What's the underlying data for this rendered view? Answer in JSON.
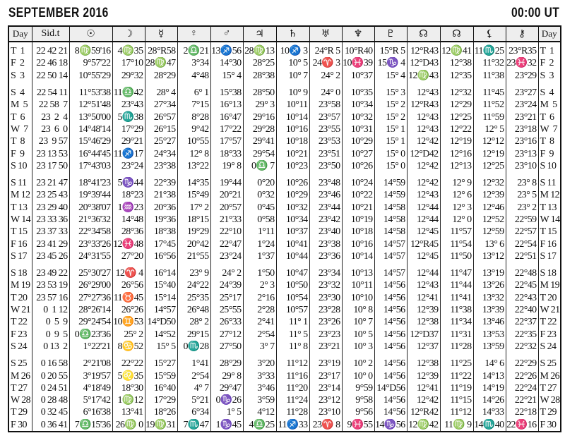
{
  "header": {
    "title": "SEPTEMBER 2016",
    "time": "00:00 UT"
  },
  "columns": [
    {
      "label": "Day",
      "icon": "day-label"
    },
    {
      "label": "Sid.t",
      "icon": "sidereal-time-label"
    },
    {
      "label": "☉",
      "icon": "sun-icon"
    },
    {
      "label": "☽",
      "icon": "moon-icon"
    },
    {
      "label": "☿",
      "icon": "mercury-icon"
    },
    {
      "label": "♀",
      "icon": "venus-icon"
    },
    {
      "label": "♂",
      "icon": "mars-icon"
    },
    {
      "label": "♃",
      "icon": "jupiter-icon"
    },
    {
      "label": "♄",
      "icon": "saturn-icon"
    },
    {
      "label": "♅",
      "icon": "uranus-icon"
    },
    {
      "label": "♆",
      "icon": "neptune-icon"
    },
    {
      "label": "♇",
      "icon": "pluto-icon"
    },
    {
      "label": "☊",
      "icon": "mean-node-icon"
    },
    {
      "label": "☊",
      "icon": "true-node-icon"
    },
    {
      "label": "⚸",
      "icon": "lilith-icon"
    },
    {
      "label": "⚷",
      "icon": "chiron-icon"
    },
    {
      "label": "Day",
      "icon": "day-label"
    }
  ],
  "rows": [
    [
      "T  1",
      "22 42 21",
      "8♍59'16",
      "4♍35",
      "28°R58",
      "2♎21",
      "13♐56",
      "28♍13",
      "10♐ 3",
      "24°R 5",
      "10°R40",
      "15°R 5",
      "12°R43",
      "12♍41",
      "11♏25",
      "23°R35",
      "T  1"
    ],
    [
      "F  2",
      "22 46 18",
      "9°57'22",
      "17°10",
      "28♍47",
      "3°34",
      "14°30",
      "28°25",
      "10° 5",
      "24♈ 3",
      "10♓39",
      "15♑ 4",
      "12°D43",
      "12°38",
      "11°32",
      "23♓32",
      "F  2"
    ],
    [
      "S  3",
      "22 50 14",
      "10°55'29",
      "29°32",
      "28°29",
      "4°48",
      "15° 4",
      "28°38",
      "10° 7",
      "24° 2",
      "10°37",
      "15° 4",
      "12♍43",
      "12°35",
      "11°38",
      "23°29",
      "S  3"
    ],
    [
      "S  4",
      "22 54 11",
      "11°53'38",
      "11♎42",
      "28° 4",
      "6° 1",
      "15°38",
      "28°50",
      "10° 9",
      "24° 0",
      "10°35",
      "15° 3",
      "12°43",
      "12°32",
      "11°45",
      "23°27",
      "S  4"
    ],
    [
      "M  5",
      "22 58  7",
      "12°51'48",
      "23°43",
      "27°34",
      "7°15",
      "16°13",
      "29° 3",
      "10°11",
      "23°58",
      "10°34",
      "15° 2",
      "12°R43",
      "12°29",
      "11°52",
      "23°24",
      "M  5"
    ],
    [
      "T  6",
      "23  2  4",
      "13°50'00",
      "5♏38",
      "26°57",
      "8°28",
      "16°47",
      "29°16",
      "10°14",
      "23°57",
      "10°32",
      "15° 2",
      "12°43",
      "12°25",
      "11°59",
      "23°21",
      "T  6"
    ],
    [
      "W  7",
      "23  6  0",
      "14°48'14",
      "17°29",
      "26°15",
      "9°42",
      "17°22",
      "29°28",
      "10°16",
      "23°55",
      "10°31",
      "15° 1",
      "12°43",
      "12°22",
      "12° 5",
      "23°18",
      "W  7"
    ],
    [
      "T  8",
      "23  9 57",
      "15°46'29",
      "29°21",
      "25°27",
      "10°55",
      "17°57",
      "29°41",
      "10°18",
      "23°53",
      "10°29",
      "15° 1",
      "12°42",
      "12°19",
      "12°12",
      "23°16",
      "T  8"
    ],
    [
      "F  9",
      "23 13 53",
      "16°44'45",
      "11♐17",
      "24°34",
      "12° 8",
      "18°33",
      "29°54",
      "10°21",
      "23°51",
      "10°27",
      "15° 0",
      "12°D42",
      "12°16",
      "12°19",
      "23°13",
      "F  9"
    ],
    [
      "S 10",
      "23 17 50",
      "17°43'03",
      "23°24",
      "23°38",
      "13°22",
      "19° 8",
      "0♎ 7",
      "10°23",
      "23°50",
      "10°26",
      "15° 0",
      "12°42",
      "12°13",
      "12°25",
      "23°10",
      "S 10"
    ],
    [
      "S 11",
      "23 21 47",
      "18°41'23",
      "5♑44",
      "22°39",
      "14°35",
      "19°44",
      "0°20",
      "10°26",
      "23°48",
      "10°24",
      "14°59",
      "12°42",
      "12° 9",
      "12°32",
      "23° 8",
      "S 11"
    ],
    [
      "M 12",
      "23 25 43",
      "19°39'44",
      "18°23",
      "21°38",
      "15°49",
      "20°21",
      "0°32",
      "10°29",
      "23°46",
      "10°22",
      "14°59",
      "12°43",
      "12° 6",
      "12°39",
      "23° 5",
      "M 12"
    ],
    [
      "T 13",
      "23 29 40",
      "20°38'07",
      "1♒23",
      "20°36",
      "17° 2",
      "20°57",
      "0°45",
      "10°32",
      "23°44",
      "10°21",
      "14°58",
      "12°44",
      "12° 3",
      "12°46",
      "23° 2",
      "T 13"
    ],
    [
      "W 14",
      "23 33 36",
      "21°36'32",
      "14°48",
      "19°36",
      "18°15",
      "21°33",
      "0°58",
      "10°34",
      "23°42",
      "10°19",
      "14°58",
      "12°44",
      "12° 0",
      "12°52",
      "22°59",
      "W 14"
    ],
    [
      "T 15",
      "23 37 33",
      "22°34'58",
      "28°36",
      "18°38",
      "19°29",
      "22°10",
      "1°11",
      "10°37",
      "23°40",
      "10°18",
      "14°58",
      "12°45",
      "11°57",
      "12°59",
      "22°57",
      "T 15"
    ],
    [
      "F 16",
      "23 41 29",
      "23°33'26",
      "12♓48",
      "17°45",
      "20°42",
      "22°47",
      "1°24",
      "10°41",
      "23°38",
      "10°16",
      "14°57",
      "12°R45",
      "11°54",
      "13° 6",
      "22°54",
      "F 16"
    ],
    [
      "S 17",
      "23 45 26",
      "24°31'55",
      "27°20",
      "16°56",
      "21°55",
      "23°24",
      "1°37",
      "10°44",
      "23°36",
      "10°14",
      "14°57",
      "12°45",
      "11°50",
      "13°12",
      "22°51",
      "S 17"
    ],
    [
      "S 18",
      "23 49 22",
      "25°30'27",
      "12♈ 4",
      "16°14",
      "23° 9",
      "24° 2",
      "1°50",
      "10°47",
      "23°34",
      "10°13",
      "14°57",
      "12°44",
      "11°47",
      "13°19",
      "22°48",
      "S 18"
    ],
    [
      "M 19",
      "23 53 19",
      "26°29'00",
      "26°56",
      "15°40",
      "24°22",
      "24°39",
      "2° 3",
      "10°50",
      "23°32",
      "10°11",
      "14°56",
      "12°43",
      "11°44",
      "13°26",
      "22°45",
      "M 19"
    ],
    [
      "T 20",
      "23 57 16",
      "27°27'36",
      "11♉45",
      "15°14",
      "25°35",
      "25°17",
      "2°16",
      "10°54",
      "23°30",
      "10°10",
      "14°56",
      "12°41",
      "11°41",
      "13°32",
      "22°43",
      "T 20"
    ],
    [
      "W 21",
      "0  1 12",
      "28°26'14",
      "26°26",
      "14°57",
      "26°48",
      "25°55",
      "2°28",
      "10°57",
      "23°28",
      "10° 8",
      "14°56",
      "12°39",
      "11°38",
      "13°39",
      "22°40",
      "W 21"
    ],
    [
      "T 22",
      "0  5  9",
      "29°24'54",
      "10♊53",
      "14°D50",
      "28° 2",
      "26°33",
      "2°41",
      "11° 1",
      "23°26",
      "10° 7",
      "14°56",
      "12°38",
      "11°34",
      "13°46",
      "22°37",
      "T 22"
    ],
    [
      "F 23",
      "0  9  5",
      "0♎23'36",
      "25° 2",
      "14°52",
      "29°15",
      "27°12",
      "2°54",
      "11° 5",
      "23°23",
      "10° 5",
      "14°56",
      "12°D37",
      "11°31",
      "13°53",
      "22°35",
      "F 23"
    ],
    [
      "S 24",
      "0 13  2",
      "1°22'21",
      "8♋52",
      "15° 5",
      "0♏28",
      "27°50",
      "3° 7",
      "11° 8",
      "23°21",
      "10° 3",
      "14°56",
      "12°37",
      "11°28",
      "13°59",
      "22°32",
      "S 24"
    ],
    [
      "S 25",
      "0 16 58",
      "2°21'08",
      "22°22",
      "15°27",
      "1°41",
      "28°29",
      "3°20",
      "11°12",
      "23°19",
      "10° 2",
      "14°56",
      "12°38",
      "11°25",
      "14° 6",
      "22°29",
      "S 25"
    ],
    [
      "M 26",
      "0 20 55",
      "3°19'57",
      "5♌35",
      "15°59",
      "2°54",
      "29° 8",
      "3°33",
      "11°16",
      "23°17",
      "10° 0",
      "14°56",
      "12°39",
      "11°22",
      "14°13",
      "22°26",
      "M 26"
    ],
    [
      "T 27",
      "0 24 51",
      "4°18'49",
      "18°30",
      "16°40",
      "4° 7",
      "29°47",
      "3°46",
      "11°20",
      "23°14",
      "9°59",
      "14°D56",
      "12°41",
      "11°19",
      "14°19",
      "22°24",
      "T 27"
    ],
    [
      "W 28",
      "0 28 48",
      "5°17'42",
      "1♍12",
      "17°29",
      "5°21",
      "0♑26",
      "3°59",
      "11°24",
      "23°12",
      "9°58",
      "14°56",
      "12°42",
      "11°15",
      "14°26",
      "22°21",
      "W 28"
    ],
    [
      "T 29",
      "0 32 45",
      "6°16'38",
      "13°41",
      "18°26",
      "6°34",
      "1° 5",
      "4°12",
      "11°28",
      "23°10",
      "9°56",
      "14°56",
      "12°R42",
      "11°12",
      "14°33",
      "22°18",
      "T 29"
    ],
    [
      "F 30",
      "0 36 41",
      "7♎15'36",
      "26♍ 0",
      "19♍31",
      "7♏47",
      "1♑45",
      "4♎25",
      "11♐33",
      "23♈ 8",
      "9♓55",
      "14♑56",
      "12♍42",
      "11♍ 9",
      "14♏40",
      "22♓16",
      "F 30"
    ]
  ]
}
